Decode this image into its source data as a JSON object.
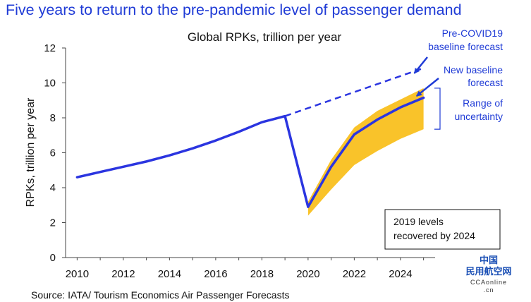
{
  "headline": "Five years to return to the pre-pandemic level of passenger demand",
  "source": "Source: IATA/ Tourism Economics Air Passenger Forecasts",
  "watermark": {
    "line1": "中国",
    "line2": "民用航空网",
    "line3": "CCAonline",
    "line4": ".cn"
  },
  "colors": {
    "line": "#2b35e0",
    "band": "#f9c32a",
    "text_blue": "#1f3bd6",
    "axis": "#444444"
  },
  "chart_data": {
    "type": "line",
    "title": "Global RPKs, trillion per year",
    "ylabel": "RPKs, trillion per year",
    "xlabel": "",
    "xlim": [
      2009.5,
      2025.5
    ],
    "ylim": [
      0,
      12
    ],
    "x_ticks": [
      2010,
      2012,
      2014,
      2016,
      2018,
      2020,
      2022,
      2024
    ],
    "y_ticks": [
      0,
      2,
      4,
      6,
      8,
      10,
      12
    ],
    "grid": false,
    "series": [
      {
        "style": "solid",
        "x": [
          2010,
          2011,
          2012,
          2013,
          2014,
          2015,
          2016,
          2017,
          2018,
          2019,
          2020,
          2021,
          2022,
          2023,
          2024,
          2025
        ],
        "y": [
          4.6,
          4.9,
          5.2,
          5.5,
          5.85,
          6.25,
          6.7,
          7.2,
          7.75,
          8.1,
          2.9,
          5.2,
          7.05,
          7.9,
          8.6,
          9.15
        ]
      },
      {
        "style": "dashed",
        "x": [
          2019,
          2025
        ],
        "y": [
          8.1,
          10.85
        ]
      }
    ],
    "uncertainty_band": {
      "x": [
        2020,
        2021,
        2022,
        2023,
        2024,
        2025
      ],
      "upper": [
        3.2,
        5.6,
        7.45,
        8.4,
        9.05,
        9.7
      ],
      "lower": [
        2.4,
        3.9,
        5.3,
        6.1,
        6.8,
        7.35
      ]
    },
    "annotations": [
      {
        "lines": [
          "Pre-COVID19",
          "baseline forecast"
        ],
        "target": [
          2024.6,
          10.55
        ]
      },
      {
        "lines": [
          "New baseline",
          "forecast"
        ],
        "target": [
          2024.7,
          9.25
        ]
      },
      {
        "lines": [
          "Range of",
          "uncertainty"
        ],
        "range": [
          7.35,
          9.7
        ]
      }
    ],
    "box_text": [
      "2019 levels",
      "recovered by 2024"
    ]
  }
}
